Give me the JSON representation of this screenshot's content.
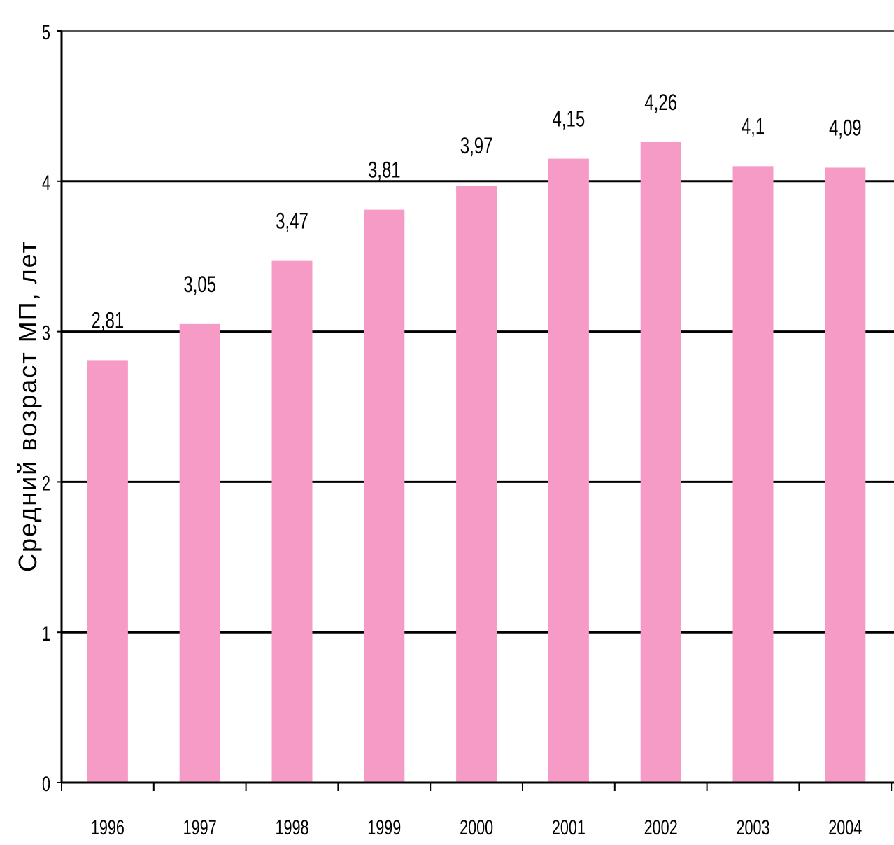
{
  "chart_data": {
    "type": "bar",
    "categories": [
      "1996",
      "1997",
      "1998",
      "1999",
      "2000",
      "2001",
      "2002",
      "2003",
      "2004"
    ],
    "values": [
      2.81,
      3.05,
      3.47,
      3.81,
      3.97,
      4.15,
      4.26,
      4.1,
      4.09
    ],
    "data_labels": [
      "2,81",
      "3,05",
      "3,47",
      "3,81",
      "3,97",
      "4,15",
      "4,26",
      "4,1",
      "4,09"
    ],
    "title": "",
    "xlabel": "",
    "ylabel": "Средний возраст   МП, лет",
    "ylim": [
      0,
      5
    ],
    "yticks": [
      0,
      1,
      2,
      3,
      4,
      5
    ],
    "ytick_labels": [
      "0",
      "1",
      "2",
      "3",
      "4",
      "5"
    ],
    "grid": true,
    "legend": "none",
    "bar_color": "#f59bc6",
    "grid_color": "#000000"
  }
}
